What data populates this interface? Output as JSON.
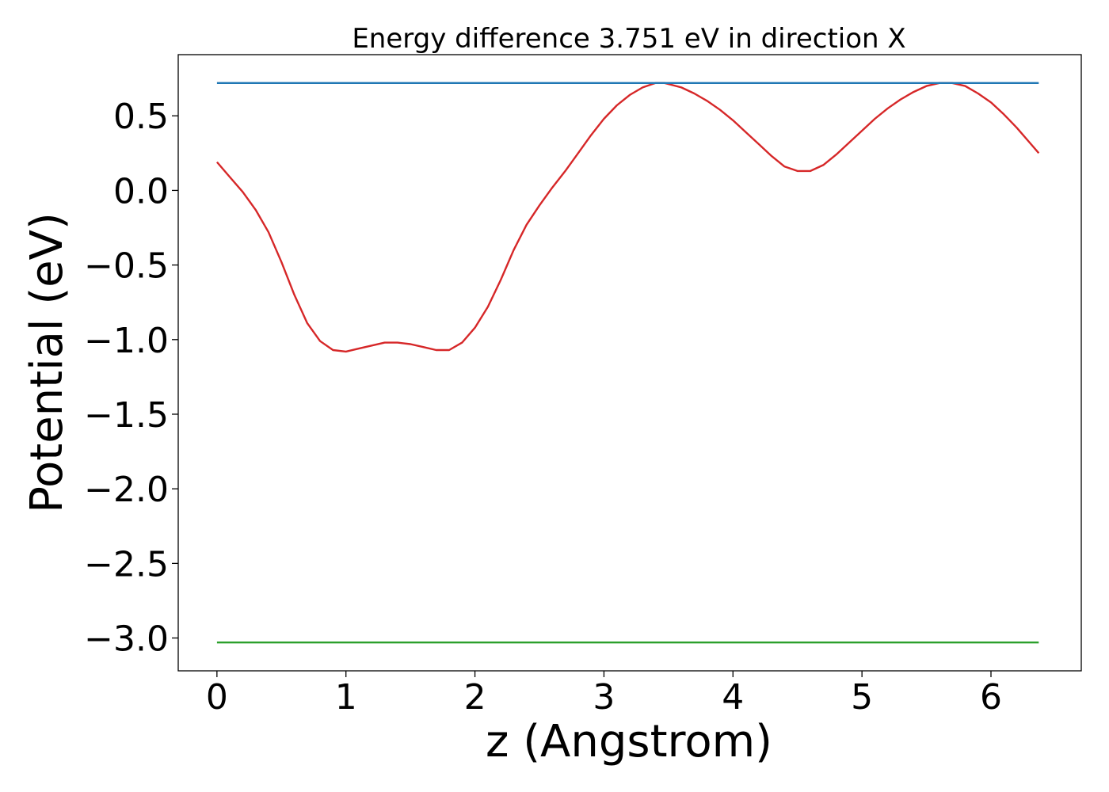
{
  "chart_data": {
    "type": "line",
    "title": "Energy difference 3.751 eV in direction X",
    "xlabel": "z (Angstrom)",
    "ylabel": "Potential (eV)",
    "xlim": [
      -0.3,
      6.7
    ],
    "ylim": [
      -3.22,
      0.91
    ],
    "x_ticks": [
      0,
      1,
      2,
      3,
      4,
      5,
      6
    ],
    "x_tick_labels": [
      "0",
      "1",
      "2",
      "3",
      "4",
      "5",
      "6"
    ],
    "y_ticks": [
      0.5,
      0.0,
      -0.5,
      -1.0,
      -1.5,
      -2.0,
      -2.5,
      -3.0
    ],
    "y_tick_labels": [
      "0.5",
      "0.0",
      "−0.5",
      "−1.0",
      "−1.5",
      "−2.0",
      "−2.5",
      "−3.0"
    ],
    "grid": false,
    "series": [
      {
        "color": "#d62728",
        "x": [
          0.0,
          0.1,
          0.2,
          0.3,
          0.4,
          0.5,
          0.6,
          0.7,
          0.8,
          0.9,
          1.0,
          1.1,
          1.2,
          1.3,
          1.4,
          1.5,
          1.6,
          1.7,
          1.8,
          1.9,
          2.0,
          2.1,
          2.2,
          2.3,
          2.4,
          2.5,
          2.6,
          2.7,
          2.8,
          2.9,
          3.0,
          3.1,
          3.2,
          3.3,
          3.4,
          3.47,
          3.6,
          3.7,
          3.8,
          3.9,
          4.0,
          4.1,
          4.2,
          4.3,
          4.4,
          4.5,
          4.6,
          4.7,
          4.8,
          4.9,
          5.0,
          5.1,
          5.2,
          5.3,
          5.4,
          5.5,
          5.6,
          5.7,
          5.8,
          5.9,
          6.0,
          6.1,
          6.2,
          6.3,
          6.37
        ],
        "y": [
          0.19,
          0.09,
          -0.01,
          -0.13,
          -0.28,
          -0.48,
          -0.7,
          -0.89,
          -1.01,
          -1.07,
          -1.08,
          -1.06,
          -1.04,
          -1.02,
          -1.02,
          -1.03,
          -1.05,
          -1.07,
          -1.07,
          -1.02,
          -0.92,
          -0.78,
          -0.6,
          -0.4,
          -0.23,
          -0.1,
          0.02,
          0.13,
          0.25,
          0.37,
          0.48,
          0.57,
          0.64,
          0.69,
          0.72,
          0.72,
          0.69,
          0.65,
          0.6,
          0.54,
          0.47,
          0.39,
          0.31,
          0.23,
          0.16,
          0.13,
          0.13,
          0.17,
          0.24,
          0.32,
          0.4,
          0.48,
          0.55,
          0.61,
          0.66,
          0.7,
          0.72,
          0.72,
          0.7,
          0.65,
          0.59,
          0.51,
          0.42,
          0.32,
          0.25
        ]
      },
      {
        "color": "#1f77b4",
        "x": [
          0.0,
          6.37
        ],
        "y": [
          0.72,
          0.72
        ]
      },
      {
        "color": "#2ca02c",
        "x": [
          0.0,
          6.37
        ],
        "y": [
          -3.03,
          -3.03
        ]
      }
    ]
  }
}
